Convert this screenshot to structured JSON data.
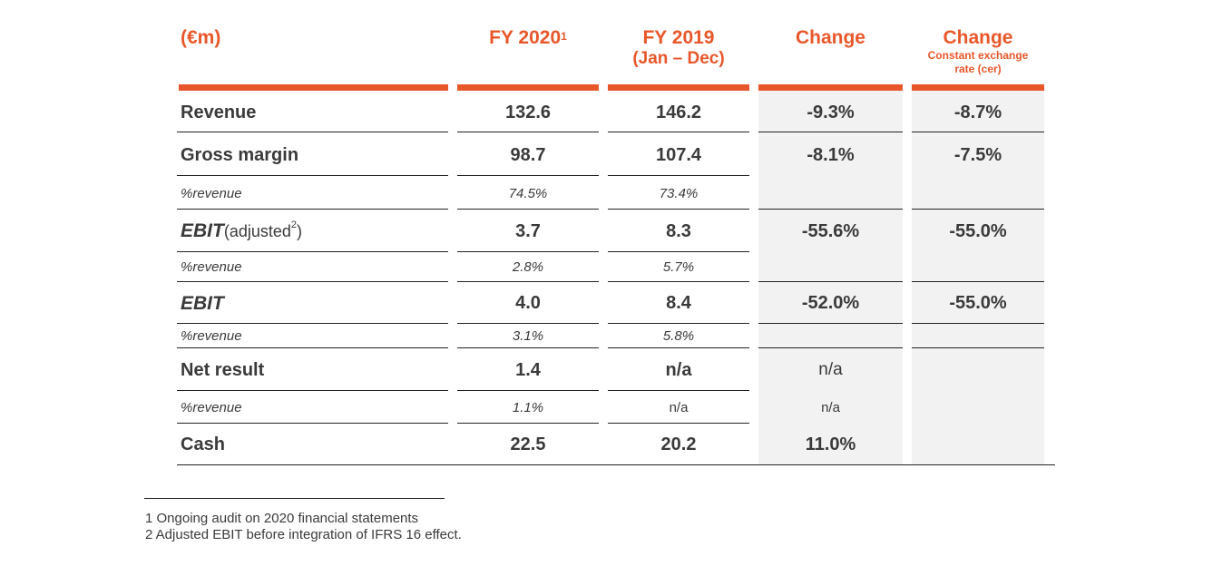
{
  "table": {
    "unit_label": "(€m)",
    "columns": {
      "fy2020": {
        "label": "FY 2020",
        "sup": "1"
      },
      "fy2019": {
        "label": "FY 2019",
        "sub": "(Jan – Dec)"
      },
      "change": {
        "label": "Change"
      },
      "change_cer": {
        "label": "Change",
        "note_line1": "Constant exchange",
        "note_line2": "rate (cer)"
      }
    },
    "rows": {
      "revenue": {
        "label": "Revenue",
        "fy2020": "132.6",
        "fy2019": "146.2",
        "change": "-9.3%",
        "change_cer": "-8.7%"
      },
      "gross_margin": {
        "label": "Gross margin",
        "fy2020": "98.7",
        "fy2019": "107.4",
        "change": "-8.1%",
        "change_cer": "-7.5%"
      },
      "gross_margin_pct": {
        "label": "%revenue",
        "fy2020": "74.5%",
        "fy2019": "73.4%"
      },
      "ebit_adj": {
        "label": "EBIT",
        "label_paren_open": " (adjusted",
        "label_sup": "2",
        "label_paren_close": ")",
        "fy2020": "3.7",
        "fy2019": "8.3",
        "change": "-55.6%",
        "change_cer": "-55.0%"
      },
      "ebit_adj_pct": {
        "label": "%revenue",
        "fy2020": "2.8%",
        "fy2019": "5.7%"
      },
      "ebit": {
        "label": "EBIT",
        "fy2020": "4.0",
        "fy2019": "8.4",
        "change": "-52.0%",
        "change_cer": "-55.0%"
      },
      "ebit_pct": {
        "label": "%revenue",
        "fy2020": "3.1%",
        "fy2019": "5.8%"
      },
      "net_result": {
        "label": "Net result",
        "fy2020": "1.4",
        "fy2019": "n/a",
        "change": "n/a"
      },
      "net_result_pct": {
        "label": "%revenue",
        "fy2020": "1.1%",
        "fy2019": "n/a",
        "change": "n/a"
      },
      "cash": {
        "label": "Cash",
        "fy2020": "22.5",
        "fy2019": "20.2",
        "change": "11.0%"
      }
    }
  },
  "footnotes": {
    "note1": "1 Ongoing audit on 2020 financial statements",
    "note2": "2 Adjusted EBIT before integration of IFRS 16 effect."
  },
  "colors": {
    "accent": "#e8572a",
    "shade": "#f2f2f2",
    "text": "#3a3a3a"
  }
}
